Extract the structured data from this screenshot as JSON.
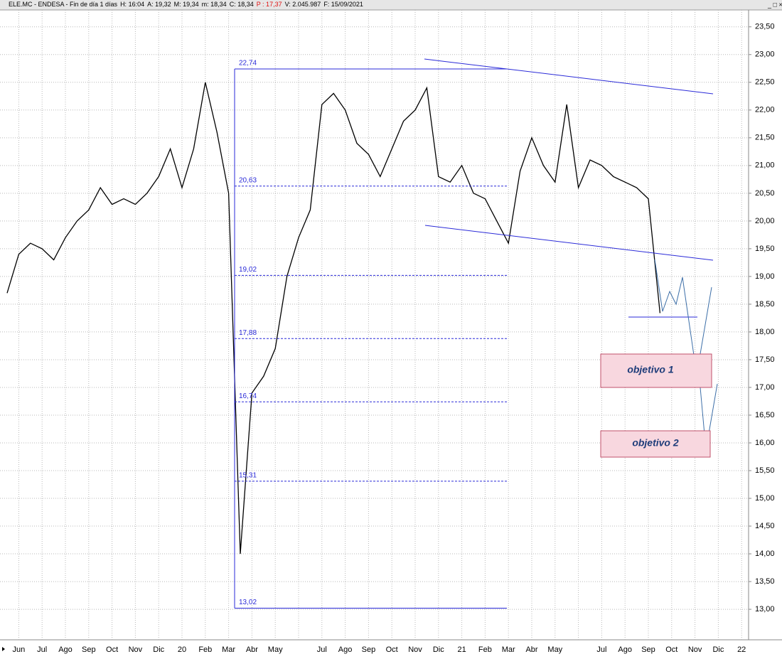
{
  "header": {
    "items": [
      {
        "text": "ELE.MC - ENDESA - Fin de día 1 días",
        "color": "#000000"
      },
      {
        "text": "H: 16:04",
        "color": "#000000"
      },
      {
        "text": "A: 19,32",
        "color": "#000000"
      },
      {
        "text": "M: 19,34",
        "color": "#000000"
      },
      {
        "text": "m: 18,34",
        "color": "#000000"
      },
      {
        "text": "C: 18,34",
        "color": "#000000"
      },
      {
        "text": "P : 17,37",
        "color": "#e01010"
      },
      {
        "text": "V: 2.045.987",
        "color": "#000000"
      },
      {
        "text": "F: 15/09/2021",
        "color": "#000000"
      }
    ]
  },
  "chart_data": {
    "type": "line",
    "color": "#000000",
    "grid": true,
    "categories": [
      null,
      "Jun",
      null,
      "Jul",
      null,
      "Ago",
      null,
      "Sep",
      null,
      "Oct",
      null,
      "Nov",
      null,
      "Dic",
      null,
      "20",
      null,
      "Feb",
      null,
      "Mar",
      null,
      "Abr",
      null,
      "May",
      null,
      null,
      null,
      "Jul",
      null,
      "Ago",
      null,
      "Sep",
      null,
      "Oct",
      null,
      "Nov",
      null,
      "Dic",
      null,
      "21",
      null,
      "Feb",
      null,
      "Mar",
      null,
      "Abr",
      null,
      "May",
      null,
      null,
      null,
      "Jul",
      null,
      "Ago",
      null,
      "Sep",
      null,
      "Oct",
      null,
      "Nov",
      null,
      "Dic",
      null,
      "22"
    ],
    "values": [
      18.7,
      19.4,
      19.6,
      19.5,
      19.3,
      19.7,
      20.0,
      20.2,
      20.6,
      20.3,
      20.4,
      20.3,
      20.5,
      20.8,
      21.3,
      20.6,
      21.3,
      22.5,
      21.6,
      20.5,
      14.0,
      16.9,
      17.2,
      17.7,
      19.0,
      19.7,
      20.2,
      22.1,
      22.3,
      22.0,
      21.4,
      21.2,
      20.8,
      21.3,
      21.8,
      22.0,
      22.4,
      20.8,
      20.7,
      21.0,
      20.5,
      20.4,
      20.0,
      19.6,
      20.9,
      21.5,
      21.0,
      20.7,
      22.1,
      20.6,
      21.1,
      21.0,
      20.8,
      20.7,
      20.6,
      20.4,
      18.34,
      null,
      null,
      null,
      null,
      null,
      null,
      null
    ],
    "ylim": [
      12.45,
      23.83
    ],
    "yticks": [
      {
        "value": 13,
        "label": "13,00"
      },
      {
        "value": 13.5,
        "label": "13,50"
      },
      {
        "value": 14,
        "label": "14,00"
      },
      {
        "value": 14.5,
        "label": "14,50"
      },
      {
        "value": 15,
        "label": "15,00"
      },
      {
        "value": 15.5,
        "label": "15,50"
      },
      {
        "value": 16,
        "label": "16,00"
      },
      {
        "value": 16.5,
        "label": "16,50"
      },
      {
        "value": 17,
        "label": "17,00"
      },
      {
        "value": 17.5,
        "label": "17,50"
      },
      {
        "value": 18,
        "label": "18,00"
      },
      {
        "value": 18.5,
        "label": "18,50"
      },
      {
        "value": 19,
        "label": "19,00"
      },
      {
        "value": 19.5,
        "label": "19,50"
      },
      {
        "value": 20,
        "label": "20,00"
      },
      {
        "value": 20.5,
        "label": "20,50"
      },
      {
        "value": 21,
        "label": "21,00"
      },
      {
        "value": 21.5,
        "label": "21,50"
      },
      {
        "value": 22,
        "label": "22,00"
      },
      {
        "value": 22.5,
        "label": "22,50"
      },
      {
        "value": 23,
        "label": "23,00"
      },
      {
        "value": 23.5,
        "label": "23,50"
      }
    ],
    "fib_levels": [
      {
        "value": 22.74,
        "label": "22,74"
      },
      {
        "value": 20.63,
        "label": "20,63"
      },
      {
        "value": 19.02,
        "label": "19,02"
      },
      {
        "value": 17.88,
        "label": "17,88"
      },
      {
        "value": 16.74,
        "label": "16,74"
      },
      {
        "value": 15.31,
        "label": "15,31"
      },
      {
        "value": 13.02,
        "label": "13,02"
      }
    ],
    "annotations": [
      "objetivo 1",
      "objetivo 2"
    ]
  }
}
